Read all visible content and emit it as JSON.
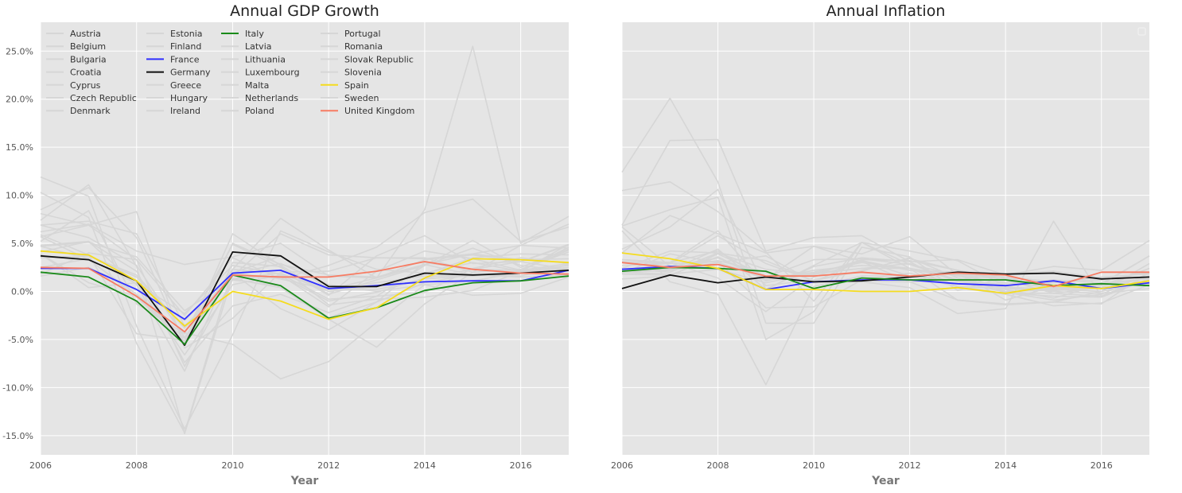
{
  "colors": {
    "panel_bg": "#e5e5e5",
    "grid": "#ffffff",
    "default_series": "#d6d6d6",
    "highlight": {
      "Italy": "#1a8a1a",
      "France": "#2f2fff",
      "Germany": "#111111",
      "Spain": "#f5dc1e",
      "United Kingdom": "#f77b62"
    }
  },
  "chart_data": [
    {
      "type": "line",
      "title": "Annual GDP Growth",
      "xlabel": "Year",
      "ylabel": "",
      "xlim": [
        2006,
        2017
      ],
      "ylim": [
        -17,
        28
      ],
      "xticks": [
        2006,
        2008,
        2010,
        2012,
        2014,
        2016
      ],
      "xtick_labels": [
        "2006",
        "2008",
        "2010",
        "2012",
        "2014",
        "2016"
      ],
      "yticks": [
        -15,
        -10,
        -5,
        0,
        5,
        10,
        15,
        20,
        25
      ],
      "ytick_labels": [
        "-15.0%",
        "-10.0%",
        "-5.0%",
        "0.0%",
        "5.0%",
        "10.0%",
        "15.0%",
        "20.0%",
        "25.0%"
      ],
      "grid": true,
      "legend": {
        "position": "top-left",
        "columns": 4
      },
      "x": [
        2006,
        2007,
        2008,
        2009,
        2010,
        2011,
        2012,
        2013,
        2014,
        2015,
        2016,
        2017
      ],
      "series": [
        {
          "name": "Austria",
          "values": [
            3.5,
            3.7,
            1.5,
            -3.8,
            1.8,
            2.9,
            0.7,
            0.0,
            0.7,
            1.1,
            2.0,
            2.5
          ]
        },
        {
          "name": "Belgium",
          "values": [
            2.5,
            3.4,
            0.8,
            -2.3,
            2.7,
            1.8,
            0.2,
            0.2,
            1.3,
            1.7,
            1.5,
            1.7
          ]
        },
        {
          "name": "Bulgaria",
          "values": [
            6.9,
            7.3,
            6.0,
            -3.6,
            1.3,
            1.9,
            0.0,
            0.5,
            1.8,
            3.5,
            3.9,
            3.8
          ]
        },
        {
          "name": "Croatia",
          "values": [
            4.8,
            5.2,
            2.1,
            -7.4,
            -1.5,
            -0.3,
            -2.2,
            -0.5,
            -0.1,
            2.4,
            3.5,
            2.9
          ]
        },
        {
          "name": "Cyprus",
          "values": [
            4.7,
            5.1,
            3.6,
            -2.0,
            1.3,
            0.4,
            -2.9,
            -5.8,
            -1.3,
            2.0,
            4.8,
            4.5
          ]
        },
        {
          "name": "Czech Republic",
          "values": [
            6.9,
            5.6,
            2.7,
            -4.8,
            2.3,
            1.8,
            -0.8,
            -0.5,
            2.7,
            5.3,
            2.5,
            4.4
          ]
        },
        {
          "name": "Denmark",
          "values": [
            3.9,
            0.9,
            -0.5,
            -4.9,
            1.9,
            1.3,
            0.2,
            0.9,
            1.6,
            1.6,
            2.0,
            2.3
          ]
        },
        {
          "name": "Estonia",
          "values": [
            10.3,
            7.7,
            -5.4,
            -14.7,
            2.3,
            7.6,
            4.3,
            1.4,
            2.8,
            1.7,
            2.1,
            4.9
          ]
        },
        {
          "name": "Finland",
          "values": [
            4.1,
            5.2,
            0.7,
            -8.3,
            3.0,
            2.6,
            -1.4,
            -0.8,
            -0.6,
            0.1,
            2.1,
            2.7
          ]
        },
        {
          "name": "France",
          "values": [
            2.4,
            2.4,
            0.2,
            -2.9,
            1.9,
            2.2,
            0.3,
            0.6,
            1.0,
            1.1,
            1.1,
            2.2
          ]
        },
        {
          "name": "Germany",
          "values": [
            3.7,
            3.3,
            1.1,
            -5.6,
            4.1,
            3.7,
            0.5,
            0.5,
            1.9,
            1.7,
            1.9,
            2.2
          ]
        },
        {
          "name": "Greece",
          "values": [
            5.7,
            3.3,
            -0.3,
            -4.3,
            -5.5,
            -9.1,
            -7.3,
            -3.2,
            0.7,
            -0.4,
            -0.2,
            1.5
          ]
        },
        {
          "name": "Hungary",
          "values": [
            3.9,
            0.4,
            0.9,
            -6.6,
            0.7,
            1.7,
            -1.6,
            2.1,
            4.2,
            3.4,
            2.2,
            4.3
          ]
        },
        {
          "name": "Ireland",
          "values": [
            5.9,
            3.8,
            -4.4,
            -5.1,
            1.9,
            3.7,
            0.2,
            1.4,
            8.5,
            25.5,
            5.0,
            7.8
          ]
        },
        {
          "name": "Italy",
          "values": [
            2.0,
            1.5,
            -1.0,
            -5.5,
            1.7,
            0.6,
            -2.8,
            -1.7,
            0.1,
            0.9,
            1.1,
            1.6
          ]
        },
        {
          "name": "Latvia",
          "values": [
            11.9,
            9.9,
            -3.6,
            -14.3,
            -4.5,
            6.3,
            4.1,
            2.3,
            1.9,
            3.0,
            2.1,
            4.6
          ]
        },
        {
          "name": "Lithuania",
          "values": [
            7.4,
            11.1,
            2.6,
            -14.8,
            1.6,
            6.0,
            3.8,
            3.5,
            3.5,
            2.0,
            2.3,
            4.1
          ]
        },
        {
          "name": "Luxembourg",
          "values": [
            5.2,
            8.4,
            -1.3,
            -4.4,
            4.9,
            2.5,
            -0.4,
            3.7,
            5.8,
            2.9,
            3.1,
            2.3
          ]
        },
        {
          "name": "Malta",
          "values": [
            1.8,
            4.0,
            3.3,
            -2.5,
            3.5,
            1.3,
            2.7,
            4.6,
            8.2,
            9.6,
            5.2,
            6.7
          ]
        },
        {
          "name": "Netherlands",
          "values": [
            3.5,
            3.7,
            1.7,
            -3.8,
            1.3,
            1.6,
            -1.0,
            -0.1,
            1.4,
            2.3,
            2.2,
            2.9
          ]
        },
        {
          "name": "Poland",
          "values": [
            6.2,
            7.0,
            4.2,
            2.8,
            3.6,
            5.0,
            1.6,
            1.4,
            3.3,
            3.8,
            3.1,
            4.8
          ]
        },
        {
          "name": "Portugal",
          "values": [
            1.6,
            2.5,
            0.2,
            -3.0,
            1.9,
            -1.8,
            -4.0,
            -1.1,
            0.9,
            1.8,
            1.6,
            2.8
          ]
        },
        {
          "name": "Romania",
          "values": [
            8.1,
            6.9,
            8.3,
            -5.9,
            -2.8,
            2.0,
            2.1,
            3.5,
            3.4,
            3.9,
            4.8,
            7.0
          ]
        },
        {
          "name": "Slovak Republic",
          "values": [
            8.5,
            10.8,
            5.6,
            -5.4,
            5.0,
            2.8,
            1.7,
            1.5,
            2.8,
            3.9,
            3.3,
            3.4
          ]
        },
        {
          "name": "Slovenia",
          "values": [
            5.7,
            6.9,
            3.3,
            -7.8,
            1.2,
            0.6,
            -2.7,
            -1.1,
            3.0,
            2.3,
            3.1,
            4.9
          ]
        },
        {
          "name": "Spain",
          "values": [
            4.2,
            3.8,
            1.1,
            -3.6,
            0.0,
            -1.0,
            -2.9,
            -1.7,
            1.4,
            3.4,
            3.3,
            3.0
          ]
        },
        {
          "name": "Sweden",
          "values": [
            4.7,
            3.4,
            -0.6,
            -5.2,
            6.0,
            2.7,
            -0.3,
            1.2,
            2.7,
            4.5,
            2.7,
            2.1
          ]
        },
        {
          "name": "United Kingdom",
          "values": [
            2.5,
            2.4,
            -0.5,
            -4.2,
            1.7,
            1.5,
            1.5,
            2.1,
            3.1,
            2.3,
            1.9,
            1.8
          ]
        }
      ]
    },
    {
      "type": "line",
      "title": "Annual Inflation",
      "xlabel": "Year",
      "ylabel": "",
      "xlim": [
        2006,
        2017
      ],
      "ylim": [
        -17,
        28
      ],
      "xticks": [
        2006,
        2008,
        2010,
        2012,
        2014,
        2016
      ],
      "xtick_labels": [
        "2006",
        "2008",
        "2010",
        "2012",
        "2014",
        "2016"
      ],
      "grid": true,
      "legend": {
        "position": "top-right",
        "columns": 1
      },
      "x": [
        2006,
        2007,
        2008,
        2009,
        2010,
        2011,
        2012,
        2013,
        2014,
        2015,
        2016,
        2017
      ],
      "series": [
        {
          "name": "Austria",
          "values": [
            2.0,
            2.2,
            3.0,
            1.5,
            1.8,
            3.2,
            2.2,
            1.8,
            1.5,
            1.0,
            1.2,
            2.0
          ]
        },
        {
          "name": "Belgium",
          "values": [
            2.1,
            2.3,
            3.5,
            1.2,
            2.0,
            3.0,
            2.4,
            1.2,
            0.6,
            0.9,
            1.5,
            1.8
          ]
        },
        {
          "name": "Bulgaria",
          "values": [
            10.5,
            11.4,
            8.3,
            4.1,
            -1.0,
            5.1,
            2.4,
            -0.9,
            -1.3,
            -1.1,
            -1.3,
            2.0
          ]
        },
        {
          "name": "Croatia",
          "values": [
            3.1,
            2.9,
            5.8,
            2.9,
            1.1,
            2.2,
            3.4,
            2.2,
            -0.2,
            -0.5,
            -0.6,
            1.3
          ]
        },
        {
          "name": "Cyprus",
          "values": [
            2.3,
            2.2,
            4.4,
            0.2,
            2.6,
            3.5,
            3.1,
            0.4,
            -0.3,
            -1.5,
            -1.2,
            0.7
          ]
        },
        {
          "name": "Czech Republic",
          "values": [
            2.1,
            3.0,
            6.3,
            0.6,
            1.2,
            2.1,
            3.5,
            1.4,
            0.4,
            0.3,
            0.6,
            2.4
          ]
        },
        {
          "name": "Denmark",
          "values": [
            1.8,
            1.7,
            3.6,
            1.1,
            2.2,
            2.7,
            2.4,
            0.5,
            0.4,
            0.2,
            0.0,
            1.1
          ]
        },
        {
          "name": "Estonia",
          "values": [
            4.4,
            6.7,
            10.6,
            0.2,
            2.7,
            5.1,
            4.2,
            3.2,
            0.5,
            0.1,
            0.8,
            3.7
          ]
        },
        {
          "name": "Finland",
          "values": [
            1.3,
            1.6,
            3.9,
            1.6,
            1.7,
            3.3,
            3.2,
            2.2,
            1.2,
            -0.2,
            0.4,
            0.8
          ]
        },
        {
          "name": "France",
          "values": [
            2.3,
            2.6,
            2.4,
            0.2,
            1.0,
            1.2,
            1.2,
            0.8,
            0.6,
            1.1,
            0.3,
            0.9
          ]
        },
        {
          "name": "Germany",
          "values": [
            0.3,
            1.7,
            0.9,
            1.5,
            1.0,
            1.1,
            1.5,
            2.0,
            1.8,
            1.9,
            1.3,
            1.5
          ]
        },
        {
          "name": "Greece",
          "values": [
            3.3,
            3.0,
            4.2,
            1.3,
            4.7,
            3.1,
            1.0,
            -0.9,
            -1.4,
            -1.1,
            0.0,
            1.1
          ]
        },
        {
          "name": "Hungary",
          "values": [
            4.0,
            7.9,
            6.0,
            4.0,
            4.7,
            3.9,
            5.7,
            1.7,
            0.0,
            0.1,
            0.4,
            2.4
          ]
        },
        {
          "name": "Ireland",
          "values": [
            2.7,
            2.9,
            3.1,
            -1.7,
            -1.6,
            1.2,
            1.9,
            0.5,
            0.3,
            0.0,
            -0.2,
            0.3
          ]
        },
        {
          "name": "Italy",
          "values": [
            2.1,
            2.5,
            2.4,
            2.1,
            0.3,
            1.4,
            1.2,
            1.2,
            1.2,
            0.6,
            0.8,
            0.6
          ]
        },
        {
          "name": "Latvia",
          "values": [
            12.4,
            20.1,
            11.4,
            -3.3,
            -3.3,
            4.6,
            3.6,
            0.1,
            1.5,
            0.2,
            0.0,
            2.9
          ]
        },
        {
          "name": "Lithuania",
          "values": [
            6.8,
            8.5,
            9.8,
            -5.0,
            -2.1,
            5.1,
            2.8,
            1.2,
            0.2,
            -0.7,
            0.7,
            3.7
          ]
        },
        {
          "name": "Luxembourg",
          "values": [
            6.7,
            2.6,
            3.5,
            1.5,
            3.3,
            3.4,
            2.8,
            1.7,
            1.3,
            0.4,
            0.3,
            1.5
          ]
        },
        {
          "name": "Malta",
          "values": [
            2.4,
            2.0,
            4.0,
            2.3,
            1.8,
            2.4,
            2.9,
            1.0,
            0.8,
            1.2,
            0.9,
            1.3
          ]
        },
        {
          "name": "Netherlands",
          "values": [
            2.0,
            1.8,
            2.3,
            0.9,
            1.9,
            2.4,
            2.4,
            1.6,
            0.9,
            0.4,
            0.7,
            1.4
          ]
        },
        {
          "name": "Poland",
          "values": [
            1.9,
            3.9,
            3.0,
            3.7,
            1.0,
            3.2,
            1.6,
            1.1,
            -0.1,
            -0.9,
            -0.3,
            1.9
          ]
        },
        {
          "name": "Portugal",
          "values": [
            3.3,
            3.0,
            1.4,
            -2.1,
            1.5,
            3.1,
            2.2,
            2.0,
            -0.9,
            0.5,
            0.6,
            1.5
          ]
        },
        {
          "name": "Romania",
          "values": [
            6.9,
            15.7,
            15.8,
            4.2,
            5.6,
            5.8,
            3.1,
            3.3,
            1.7,
            2.6,
            2.2,
            5.3
          ]
        },
        {
          "name": "Slovak Republic",
          "values": [
            6.3,
            1.0,
            -0.3,
            -9.7,
            0.5,
            1.6,
            1.6,
            0.5,
            -0.2,
            -0.2,
            -0.5,
            1.3
          ]
        },
        {
          "name": "Slovenia",
          "values": [
            2.4,
            4.2,
            4.0,
            3.2,
            1.1,
            1.0,
            0.4,
            -2.3,
            -1.8,
            7.3,
            -0.5,
            1.6
          ]
        },
        {
          "name": "Spain",
          "values": [
            4.0,
            3.4,
            2.4,
            0.2,
            0.2,
            0.0,
            0.0,
            0.4,
            -0.2,
            0.6,
            0.3,
            1.1
          ]
        },
        {
          "name": "Sweden",
          "values": [
            2.0,
            2.4,
            3.2,
            2.0,
            0.9,
            1.1,
            1.0,
            1.2,
            1.8,
            2.1,
            1.4,
            1.9
          ]
        },
        {
          "name": "United Kingdom",
          "values": [
            3.0,
            2.5,
            2.8,
            1.6,
            1.6,
            2.0,
            1.6,
            1.9,
            1.7,
            0.5,
            2.0,
            2.0
          ]
        }
      ]
    }
  ]
}
